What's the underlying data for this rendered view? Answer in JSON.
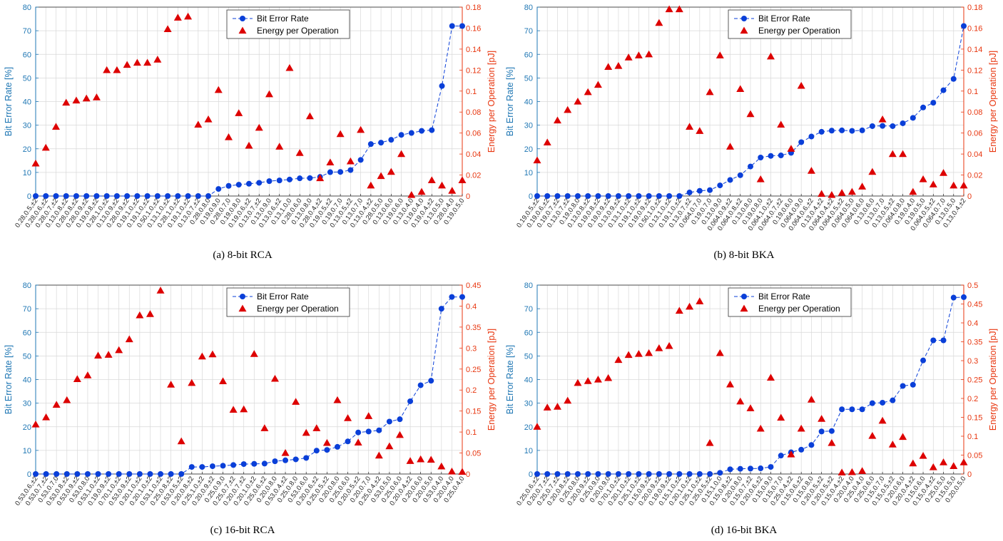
{
  "colors": {
    "ber": "#0a3fd8",
    "ber_axis": "#1f77b4",
    "energy": "#e8360f",
    "energy_marker": "#dd0000",
    "grid": "#d8d8d8"
  },
  "chart_data": [
    {
      "type": "line",
      "caption": "(a) 8-bit RCA",
      "ylabel_left": "Bit Error Rate [%]",
      "ylabel_right": "Energy per Operation [pJ]",
      "legend": [
        "Bit Error Rate",
        "Energy per Operation"
      ],
      "legend_placement": "top-center",
      "grid": true,
      "ylim_left": [
        0,
        80
      ],
      "yticks_left": [
        0,
        10,
        20,
        30,
        40,
        50,
        60,
        70,
        80
      ],
      "ylim_right": [
        0,
        0.18
      ],
      "yticks_right": [
        0,
        0.02,
        0.04,
        0.06,
        0.08,
        0.1,
        0.12,
        0.14,
        0.16,
        0.18
      ],
      "categories": [
        "0.28,0.5,±2",
        "0.28,0.6,±2",
        "0.28,0.7,±2",
        "0.13,0.8,±2",
        "0.28,0.8,±2",
        "0.28,0.9,±2",
        "0.19,0.8,±2",
        "0.28,1.0,±2",
        "0.13,0.9,±2",
        "0.28,0.9,±2",
        "0.19,1.0,±2",
        "0.19,1.0,±2",
        "0.50,1.0,±2",
        "0.13,1.0,±2",
        "0.28,1.0,±2",
        "0.19,1.0,±2",
        "0.13,0.7,±2",
        "0.28,0.8,0",
        "0.19,0.9,0",
        "0.28,0.7,0",
        "0.19,0.8,0",
        "0.19,0.6,±2",
        "0.13,0.7,±2",
        "0.13,0.9,0",
        "0.13,0.6,±2",
        "0.13,1.0,0",
        "0.28,0.6,0",
        "0.13,0.8,0",
        "0.28,0.4,±2",
        "0.19,0.5,±2",
        "0.19,0.7,0",
        "0.13,0.5,±2",
        "0.13,0.7,0",
        "0.13,0.4,±2",
        "0.28,0.5,0",
        "0.13,0.6,0",
        "0.19,0.6,0",
        "0.13,0.4,0",
        "0.19,0.4,0",
        "0.19,0.4,±2",
        "0.13,0.5,0",
        "0.28,0.4,0",
        "0.19,0.5,0"
      ],
      "series": [
        {
          "name": "Bit Error Rate",
          "axis": "left",
          "values": [
            0,
            0,
            0,
            0,
            0,
            0,
            0,
            0,
            0,
            0,
            0,
            0,
            0,
            0,
            0,
            0,
            0,
            0,
            3,
            4.3,
            4.8,
            5.2,
            5.6,
            6.3,
            6.6,
            7,
            7.5,
            7.6,
            8.1,
            10.1,
            10.2,
            11,
            15.3,
            22,
            22.6,
            23.8,
            25.9,
            26.7,
            27.6,
            27.9,
            46.6,
            72,
            72
          ]
        },
        {
          "name": "Energy per Operation",
          "axis": "right",
          "values": [
            0.031,
            0.046,
            0.066,
            0.089,
            0.091,
            0.093,
            0.094,
            0.12,
            0.12,
            0.125,
            0.127,
            0.127,
            0.13,
            0.159,
            0.17,
            0.171,
            0.068,
            0.073,
            0.101,
            0.056,
            0.079,
            0.048,
            0.065,
            0.097,
            0.047,
            0.122,
            0.041,
            0.076,
            0.017,
            0.032,
            0.059,
            0.033,
            0.063,
            0.01,
            0.019,
            0.023,
            0.04,
            0.001,
            0.004,
            0.015,
            0.01,
            0.005,
            0.015
          ]
        }
      ]
    },
    {
      "type": "line",
      "caption": "(b) 8-bit BKA",
      "ylabel_left": "Bit Error Rate [%]",
      "ylabel_right": "Energy per Operation [pJ]",
      "legend": [
        "Bit Error Rate",
        "Energy per Operation"
      ],
      "legend_placement": "top-center",
      "grid": true,
      "ylim_left": [
        0,
        80
      ],
      "yticks_left": [
        0,
        10,
        20,
        30,
        40,
        50,
        60,
        70,
        80
      ],
      "ylim_right": [
        0,
        0.18
      ],
      "yticks_right": [
        0,
        0.02,
        0.04,
        0.06,
        0.08,
        0.1,
        0.12,
        0.14,
        0.16,
        0.18
      ],
      "categories": [
        "0.19,0.5,±2",
        "0.19,0.6,±2",
        "0.19,0.7,±2",
        "0.13,0.7,±2",
        "0.19,0.8,0",
        "0.13,0.8,±2",
        "0.19,0.8,±2",
        "0.19,0.9,±2",
        "0.13,0.9,±2",
        "0.13,1.0,±2",
        "0.19,1.0,±2",
        "0.19,0.9,±2",
        "0.50,1.0,±2",
        "0.13,1.0,±2",
        "0.19,1.0,±2",
        "0.13,0.7,±2",
        "0.064,0.7,0",
        "0.19,0.7,0",
        "0.13,0.9,0",
        "0.064,0.9,±2",
        "0.064,0.8,±2",
        "0.13,0.8,0",
        "0.19,0.8,0",
        "0.064,1.0,±2",
        "0.064,0.7,±2",
        "0.19,0.6,0",
        "0.064,0.9,0",
        "0.064,0.6,±2",
        "0.13,0.4,±2",
        "0.064,0.4,±2",
        "0.064,0.5,±2",
        "0.064,0.5,0",
        "0.064,0.6,0",
        "0.13,0.6,0",
        "0.13,0.7,0",
        "0.13,0.5,±2",
        "0.064,0.8,0",
        "0.19,0.4,0",
        "0.19,0.5,0",
        "0.064,0.5,±2",
        "0.064,0.7,0",
        "0.13,0.5,0",
        "0.13,0.4,±2"
      ],
      "series": [
        {
          "name": "Bit Error Rate",
          "axis": "left",
          "values": [
            0,
            0,
            0,
            0,
            0,
            0,
            0,
            0,
            0,
            0,
            0,
            0,
            0,
            0,
            0,
            1.5,
            2.2,
            2.5,
            4.5,
            6.8,
            8.8,
            12.5,
            16.3,
            17,
            17.2,
            18.3,
            22.8,
            25.2,
            27.2,
            27.7,
            27.8,
            27.6,
            27.8,
            29.6,
            29.7,
            29.6,
            30.8,
            33.1,
            37.5,
            39.5,
            44.8,
            49.6,
            72
          ]
        },
        {
          "name": "Energy per Operation",
          "axis": "right",
          "values": [
            0.034,
            0.051,
            0.072,
            0.082,
            0.09,
            0.099,
            0.106,
            0.123,
            0.124,
            0.132,
            0.134,
            0.135,
            0.165,
            0.178,
            0.178,
            0.066,
            0.062,
            0.099,
            0.134,
            0.047,
            0.102,
            0.078,
            0.016,
            0.133,
            0.068,
            0.045,
            0.105,
            0.024,
            0.002,
            0.001,
            0.003,
            0.004,
            0.009,
            0.023,
            0.073,
            0.04,
            0.04,
            0.004,
            0.016,
            0.011,
            0.022,
            0.01,
            0.01
          ]
        }
      ]
    },
    {
      "type": "line",
      "caption": "(c) 16-bit RCA",
      "ylabel_left": "Bit Error Rate [%]",
      "ylabel_right": "Energy per Operation [pJ]",
      "legend": [
        "Bit Error Rate",
        "Energy per Operation"
      ],
      "legend_placement": "top-center",
      "grid": true,
      "ylim_left": [
        0,
        80
      ],
      "yticks_left": [
        0,
        10,
        20,
        30,
        40,
        50,
        60,
        70,
        80
      ],
      "ylim_right": [
        0,
        0.45
      ],
      "yticks_right": [
        0,
        0.05,
        0.1,
        0.15,
        0.2,
        0.25,
        0.3,
        0.35,
        0.4,
        0.45
      ],
      "categories": [
        "0.53,0.6,±2",
        "0.53,0.7,±2",
        "0.53,0.7,0",
        "0.53,0.8,±2",
        "0.53,0.9,±2",
        "0.53,0.8,0",
        "0.53,1.0,±2",
        "0.19,0.9,±2",
        "0.70,1.0,±2",
        "0.53,0.9,±2",
        "0.20,1.0,±2",
        "0.20,1.0,±2",
        "0.53,1.0,±2",
        "0.25,0.8,±2",
        "0.53,0.5,±2",
        "0.20,0.8,±2",
        "0.25,1.0,±2",
        "0.20,0.9,±2",
        "0.25,0.9,0",
        "0.25,0.7,±2",
        "0.20,0.7,±2",
        "0.20,1.0,±2",
        "0.25,0.6,±2",
        "0.20,0.8,0",
        "0.53,0.4,±2",
        "0.25,0.8,0",
        "0.53,0.6,0",
        "0.20,0.6,±2",
        "0.25,0.5,±2",
        "0.20,0.8,0",
        "0.25,0.6,0",
        "0.20,0.5,±2",
        "0.20,0.7,0",
        "0.25,0.4,±2",
        "0.53,0.5,0",
        "0.25,0.6,0",
        "0.20,0.4,±2",
        "0.20,0.6,0",
        "0.20,0.5,0",
        "0.53,0.4,0",
        "0.20,0.4,0",
        "0.25,0.4,0"
      ],
      "series": [
        {
          "name": "Bit Error Rate",
          "axis": "left",
          "values": [
            0,
            0,
            0,
            0,
            0,
            0,
            0,
            0,
            0,
            0,
            0,
            0,
            0,
            0,
            0,
            3,
            3,
            3.3,
            3.5,
            3.8,
            4.2,
            4.3,
            4.4,
            5.4,
            5.8,
            6.2,
            6.8,
            9.9,
            10.2,
            11.5,
            13.8,
            17.6,
            18,
            18.5,
            22.2,
            23.2,
            30.8,
            37.6,
            39.5,
            70,
            75,
            75
          ]
        },
        {
          "name": "Energy per Operation",
          "axis": "right",
          "values": [
            0.118,
            0.135,
            0.165,
            0.176,
            0.226,
            0.235,
            0.282,
            0.284,
            0.295,
            0.321,
            0.378,
            0.381,
            0.437,
            0.213,
            0.078,
            0.217,
            0.28,
            0.285,
            0.221,
            0.153,
            0.154,
            0.286,
            0.109,
            0.227,
            0.05,
            0.172,
            0.098,
            0.109,
            0.074,
            0.176,
            0.133,
            0.075,
            0.138,
            0.044,
            0.066,
            0.093,
            0.031,
            0.035,
            0.034,
            0.018,
            0.006,
            0.005
          ]
        }
      ]
    },
    {
      "type": "line",
      "caption": "(d) 16-bit BKA",
      "ylabel_left": "Bit Error Rate [%]",
      "ylabel_right": "Energy per Operation [pJ]",
      "legend": [
        "Bit Error Rate",
        "Energy per Operation"
      ],
      "legend_placement": "top-center",
      "grid": true,
      "ylim_left": [
        0,
        80
      ],
      "yticks_left": [
        0,
        10,
        20,
        30,
        40,
        50,
        60,
        70,
        80
      ],
      "ylim_right": [
        0,
        0.5
      ],
      "yticks_right": [
        0,
        0.05,
        0.1,
        0.15,
        0.2,
        0.25,
        0.3,
        0.35,
        0.4,
        0.45,
        0.5
      ],
      "categories": [
        "0.25,0.6,±2",
        "0.20,0.7,±2",
        "0.25,0.7,±2",
        "0.20,0.8,±2",
        "0.25,0.8,0",
        "0.20,0.9,±2",
        "0.25,0.9,0",
        "0.20,0.9,0",
        "0.70,1.0,±2",
        "0.20,1.0,±2",
        "0.25,1.0,±2",
        "0.15,0.9,±2",
        "0.20,0.9,±2",
        "0.19,0.9,±2",
        "0.15,1.0,±2",
        "0.20,1.0,±2",
        "0.25,1.0,±2",
        "0.25,0.5,±2",
        "0.15,1.0,0",
        "0.15,0.8,±2",
        "0.20,0.8,0",
        "0.15,0.7,±2",
        "0.20,0.6,±2",
        "0.15,0.9,0",
        "0.15,0.7,0",
        "0.25,0.4,±2",
        "0.15,0.6,±2",
        "0.15,0.8,0",
        "0.20,0.5,±2",
        "0.20,0.5,±2",
        "0.15,0.4,±2",
        "0.20,0.4,0",
        "0.25,0.4,0",
        "0.25,0.6,0",
        "0.15,0.7,0",
        "0.15,0.5,±2",
        "0.20,0.6,0",
        "0.20,0.4,±2",
        "0.15,0.6,0",
        "0.15,0.4,±2",
        "0.25,0.5,0",
        "0.15,0.5,0",
        "0.20,0.5,0"
      ],
      "series": [
        {
          "name": "Bit Error Rate",
          "axis": "left",
          "values": [
            0,
            0,
            0,
            0,
            0,
            0,
            0,
            0,
            0,
            0,
            0,
            0,
            0,
            0,
            0,
            0,
            0,
            0,
            0.5,
            2,
            2.2,
            2.3,
            2.4,
            3,
            7.8,
            9.2,
            10.3,
            12.3,
            18,
            18.2,
            27.4,
            27.4,
            27.4,
            30,
            30.2,
            31.2,
            37.3,
            37.8,
            48.1,
            56.6,
            56.6,
            74.7,
            74.9
          ]
        },
        {
          "name": "Energy per Operation",
          "axis": "right",
          "values": [
            0.125,
            0.176,
            0.178,
            0.194,
            0.241,
            0.246,
            0.25,
            0.254,
            0.302,
            0.315,
            0.318,
            0.32,
            0.333,
            0.339,
            0.432,
            0.443,
            0.457,
            0.082,
            0.32,
            0.237,
            0.192,
            0.174,
            0.12,
            0.255,
            0.149,
            0.052,
            0.12,
            0.197,
            0.146,
            0.082,
            0.004,
            0.005,
            0.008,
            0.101,
            0.141,
            0.078,
            0.098,
            0.028,
            0.048,
            0.018,
            0.031,
            0.021,
            0.031
          ]
        }
      ]
    }
  ]
}
